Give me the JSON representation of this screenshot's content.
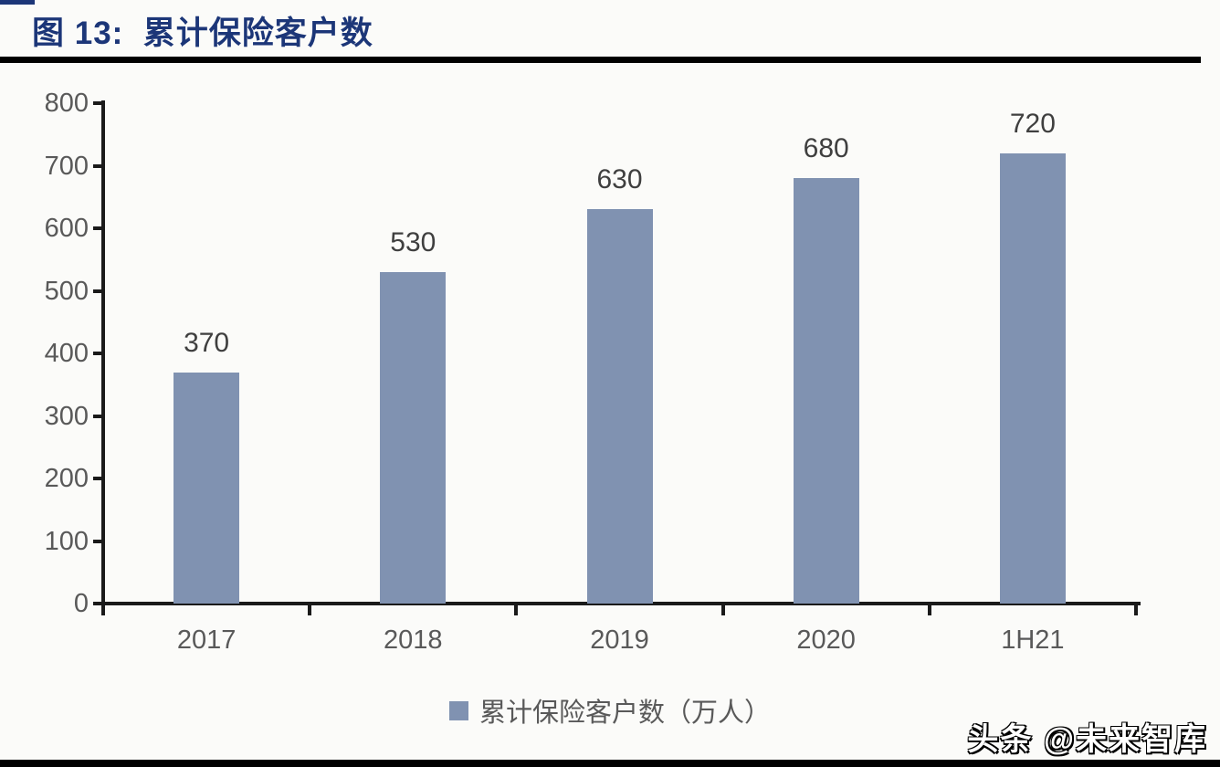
{
  "figure": {
    "title": "图 13:  累计保险客户数"
  },
  "chart_data": {
    "type": "bar",
    "categories": [
      "2017",
      "2018",
      "2019",
      "2020",
      "1H21"
    ],
    "values": [
      370,
      530,
      630,
      680,
      720
    ],
    "data_labels": [
      "370",
      "530",
      "630",
      "680",
      "720"
    ],
    "title": "累计保险客户数",
    "xlabel": "",
    "ylabel": "",
    "ylim": [
      0,
      800
    ],
    "yticks": [
      0,
      100,
      200,
      300,
      400,
      500,
      600,
      700,
      800
    ],
    "grid": false,
    "legend_position": "bottom",
    "legend": "累计保险客户数（万人）",
    "bar_color": "#8092B1"
  },
  "legend": {
    "label": "累计保险客户数（万人）"
  },
  "watermark": {
    "text": "头条 @未来智库"
  },
  "colors": {
    "title": "#1C3678",
    "bars": "#8092B1",
    "axis": "#1A1A1A",
    "tick_labels": "#595959",
    "value_labels": "#3F3F3F",
    "rules": "#000000",
    "background": "#FBFBF9"
  }
}
